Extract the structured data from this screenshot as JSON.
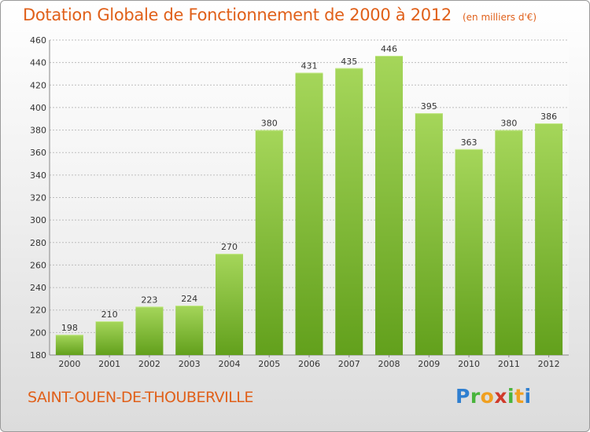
{
  "chart_data": {
    "type": "bar",
    "title": "Dotation Globale de Fonctionnement de 2000 à 2012",
    "subtitle": "(en milliers d'€)",
    "categories": [
      "2000",
      "2001",
      "2002",
      "2003",
      "2004",
      "2005",
      "2006",
      "2007",
      "2008",
      "2009",
      "2010",
      "2011",
      "2012"
    ],
    "values": [
      198,
      210,
      223,
      224,
      270,
      380,
      431,
      435,
      446,
      395,
      363,
      380,
      386
    ],
    "ylim": [
      180,
      460
    ],
    "yticks": [
      180,
      200,
      220,
      240,
      260,
      280,
      300,
      320,
      340,
      360,
      380,
      400,
      420,
      440,
      460
    ],
    "xlabel": "",
    "ylabel": "",
    "grid": true,
    "bar_color_top": "#a5d65a",
    "bar_color_bottom": "#62a01c"
  },
  "footer": {
    "commune": "SAINT-OUEN-DE-THOUBERVILLE",
    "logo_text": "Proxiti"
  }
}
